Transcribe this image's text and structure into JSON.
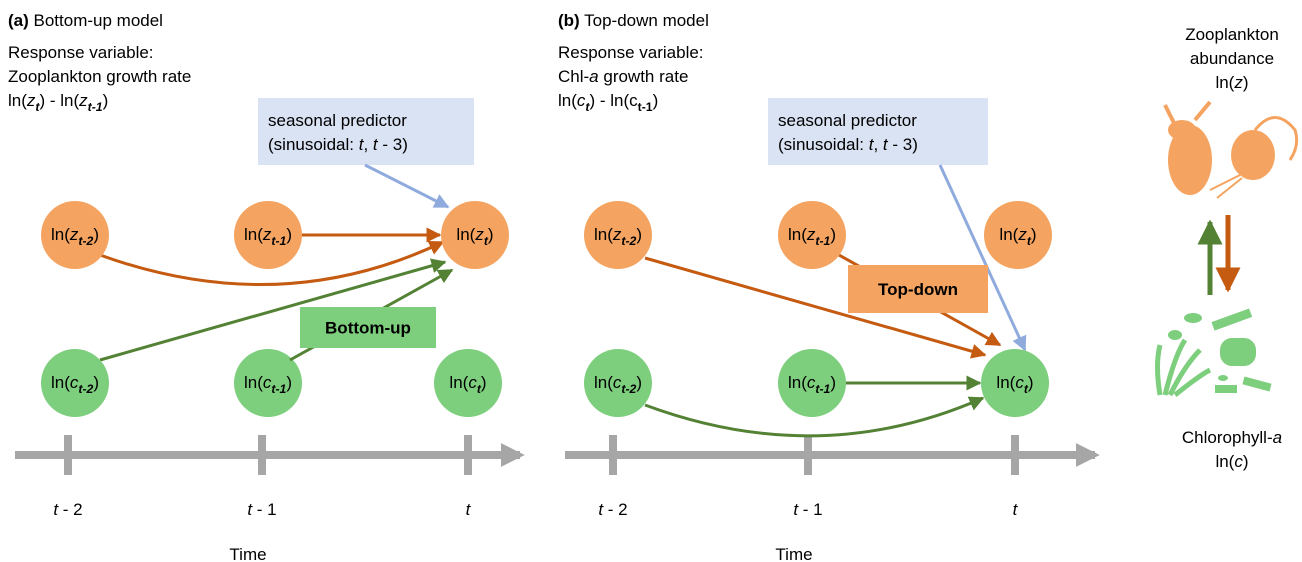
{
  "panel_a": {
    "title": [
      [
        "(a)",
        "b"
      ],
      [
        " Bottom-up model",
        ""
      ]
    ],
    "response": [
      [
        [
          "Response variable:",
          ""
        ]
      ],
      [
        [
          "Zooplankton growth rate",
          ""
        ]
      ],
      [
        [
          "ln(",
          ""
        ],
        [
          "z",
          "i"
        ],
        [
          "t",
          "isub"
        ],
        [
          ") - ln(",
          ""
        ],
        [
          "z",
          "i"
        ],
        [
          "t-1",
          "isub"
        ],
        [
          ")",
          ""
        ]
      ]
    ],
    "predictor": [
      [
        [
          "seasonal predictor",
          ""
        ]
      ],
      [
        [
          "(sinusoidal: ",
          ""
        ],
        [
          "t",
          "i"
        ],
        [
          ", ",
          ""
        ],
        [
          "t",
          "i"
        ],
        [
          " - 3)",
          ""
        ]
      ]
    ],
    "nodes": [
      [
        [
          "ln(",
          ""
        ],
        [
          "z",
          "i"
        ],
        [
          "t-2",
          "isub"
        ],
        [
          ")",
          ""
        ]
      ],
      [
        [
          "ln(",
          ""
        ],
        [
          "z",
          "i"
        ],
        [
          "t-1",
          "isub"
        ],
        [
          ")",
          ""
        ]
      ],
      [
        [
          "ln(",
          ""
        ],
        [
          "z",
          "i"
        ],
        [
          "t",
          "isub"
        ],
        [
          ")",
          ""
        ]
      ],
      [
        [
          "ln(",
          ""
        ],
        [
          "c",
          "i"
        ],
        [
          "t-2",
          "isub"
        ],
        [
          ")",
          ""
        ]
      ],
      [
        [
          "ln(",
          ""
        ],
        [
          "c",
          "i"
        ],
        [
          "t-1",
          "isub"
        ],
        [
          ")",
          ""
        ]
      ],
      [
        [
          "ln(",
          ""
        ],
        [
          "c",
          "i"
        ],
        [
          "t",
          "isub"
        ],
        [
          ")",
          ""
        ]
      ]
    ],
    "effect": "Bottom-up",
    "time_ticks": [
      [
        [
          "t",
          "i"
        ],
        [
          " - 2",
          ""
        ]
      ],
      [
        [
          "t",
          "i"
        ],
        [
          " - 1",
          ""
        ]
      ],
      [
        [
          "t",
          "i"
        ]
      ]
    ],
    "axis_title": "Time"
  },
  "panel_b": {
    "title": [
      [
        "(b)",
        "b"
      ],
      [
        " Top-down model",
        ""
      ]
    ],
    "response": [
      [
        [
          "Response variable:",
          ""
        ]
      ],
      [
        [
          "Chl-",
          ""
        ],
        [
          "a",
          "i"
        ],
        [
          " growth rate",
          ""
        ]
      ],
      [
        [
          "ln(",
          ""
        ],
        [
          "c",
          "i"
        ],
        [
          "t",
          "isub"
        ],
        [
          ") - ln(c",
          ""
        ],
        [
          "t-1",
          "sub"
        ],
        [
          ")",
          ""
        ]
      ]
    ],
    "predictor": [
      [
        [
          "seasonal predictor",
          ""
        ]
      ],
      [
        [
          "(sinusoidal: ",
          ""
        ],
        [
          "t",
          "i"
        ],
        [
          ", ",
          ""
        ],
        [
          "t",
          "i"
        ],
        [
          " - 3)",
          ""
        ]
      ]
    ],
    "nodes": [
      [
        [
          "ln(",
          ""
        ],
        [
          "z",
          "i"
        ],
        [
          "t-2",
          "isub"
        ],
        [
          ")",
          ""
        ]
      ],
      [
        [
          "ln(",
          ""
        ],
        [
          "z",
          "i"
        ],
        [
          "t-1",
          "isub"
        ],
        [
          ")",
          ""
        ]
      ],
      [
        [
          "ln(",
          ""
        ],
        [
          "z",
          "i"
        ],
        [
          "t",
          "isub"
        ],
        [
          ")",
          ""
        ]
      ],
      [
        [
          "ln(",
          ""
        ],
        [
          "c",
          "i"
        ],
        [
          "t-2",
          "isub"
        ],
        [
          ")",
          ""
        ]
      ],
      [
        [
          "ln(",
          ""
        ],
        [
          "c",
          "i"
        ],
        [
          "t-1",
          "isub"
        ],
        [
          ")",
          ""
        ]
      ],
      [
        [
          "ln(",
          ""
        ],
        [
          "c",
          "i"
        ],
        [
          "t",
          "isub"
        ],
        [
          ")",
          ""
        ]
      ]
    ],
    "effect": "Top-down",
    "time_ticks": [
      [
        [
          "t",
          "i"
        ],
        [
          " - 2",
          ""
        ]
      ],
      [
        [
          "t",
          "i"
        ],
        [
          " - 1",
          ""
        ]
      ],
      [
        [
          "t",
          "i"
        ]
      ]
    ],
    "axis_title": "Time"
  },
  "legend": {
    "zooplankton": [
      [
        [
          "Zooplankton",
          ""
        ]
      ],
      [
        [
          "abundance",
          ""
        ]
      ],
      [
        [
          "ln(",
          ""
        ],
        [
          "z",
          "i"
        ],
        [
          ")",
          ""
        ]
      ]
    ],
    "chlorophyll": [
      [
        [
          "Chlorophyll-",
          ""
        ],
        [
          "a",
          "i"
        ]
      ],
      [
        [
          "ln(",
          ""
        ],
        [
          "c",
          "i"
        ],
        [
          ")",
          ""
        ]
      ]
    ]
  }
}
